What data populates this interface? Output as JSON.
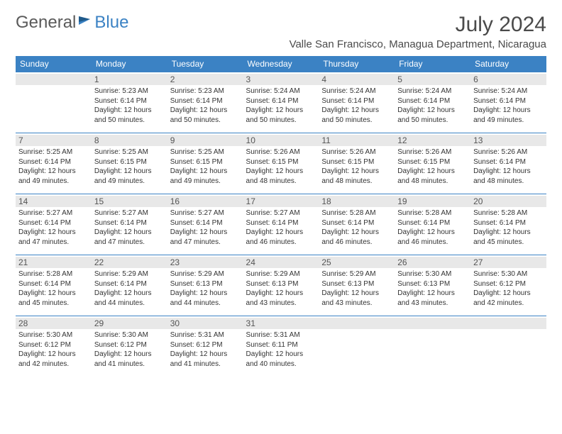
{
  "logo": {
    "text1": "General",
    "text2": "Blue"
  },
  "title": "July 2024",
  "location": "Valle San Francisco, Managua Department, Nicaragua",
  "colors": {
    "header_bg": "#3b82c4",
    "header_text": "#ffffff",
    "daynum_bg": "#e8e8e8",
    "border": "#3b82c4",
    "text": "#333333",
    "logo_gray": "#5a5a5a",
    "logo_blue": "#3b82c4"
  },
  "day_headers": [
    "Sunday",
    "Monday",
    "Tuesday",
    "Wednesday",
    "Thursday",
    "Friday",
    "Saturday"
  ],
  "weeks": [
    [
      {
        "n": "",
        "sr": "",
        "ss": "",
        "dl": ""
      },
      {
        "n": "1",
        "sr": "Sunrise: 5:23 AM",
        "ss": "Sunset: 6:14 PM",
        "dl": "Daylight: 12 hours and 50 minutes."
      },
      {
        "n": "2",
        "sr": "Sunrise: 5:23 AM",
        "ss": "Sunset: 6:14 PM",
        "dl": "Daylight: 12 hours and 50 minutes."
      },
      {
        "n": "3",
        "sr": "Sunrise: 5:24 AM",
        "ss": "Sunset: 6:14 PM",
        "dl": "Daylight: 12 hours and 50 minutes."
      },
      {
        "n": "4",
        "sr": "Sunrise: 5:24 AM",
        "ss": "Sunset: 6:14 PM",
        "dl": "Daylight: 12 hours and 50 minutes."
      },
      {
        "n": "5",
        "sr": "Sunrise: 5:24 AM",
        "ss": "Sunset: 6:14 PM",
        "dl": "Daylight: 12 hours and 50 minutes."
      },
      {
        "n": "6",
        "sr": "Sunrise: 5:24 AM",
        "ss": "Sunset: 6:14 PM",
        "dl": "Daylight: 12 hours and 49 minutes."
      }
    ],
    [
      {
        "n": "7",
        "sr": "Sunrise: 5:25 AM",
        "ss": "Sunset: 6:14 PM",
        "dl": "Daylight: 12 hours and 49 minutes."
      },
      {
        "n": "8",
        "sr": "Sunrise: 5:25 AM",
        "ss": "Sunset: 6:15 PM",
        "dl": "Daylight: 12 hours and 49 minutes."
      },
      {
        "n": "9",
        "sr": "Sunrise: 5:25 AM",
        "ss": "Sunset: 6:15 PM",
        "dl": "Daylight: 12 hours and 49 minutes."
      },
      {
        "n": "10",
        "sr": "Sunrise: 5:26 AM",
        "ss": "Sunset: 6:15 PM",
        "dl": "Daylight: 12 hours and 48 minutes."
      },
      {
        "n": "11",
        "sr": "Sunrise: 5:26 AM",
        "ss": "Sunset: 6:15 PM",
        "dl": "Daylight: 12 hours and 48 minutes."
      },
      {
        "n": "12",
        "sr": "Sunrise: 5:26 AM",
        "ss": "Sunset: 6:15 PM",
        "dl": "Daylight: 12 hours and 48 minutes."
      },
      {
        "n": "13",
        "sr": "Sunrise: 5:26 AM",
        "ss": "Sunset: 6:14 PM",
        "dl": "Daylight: 12 hours and 48 minutes."
      }
    ],
    [
      {
        "n": "14",
        "sr": "Sunrise: 5:27 AM",
        "ss": "Sunset: 6:14 PM",
        "dl": "Daylight: 12 hours and 47 minutes."
      },
      {
        "n": "15",
        "sr": "Sunrise: 5:27 AM",
        "ss": "Sunset: 6:14 PM",
        "dl": "Daylight: 12 hours and 47 minutes."
      },
      {
        "n": "16",
        "sr": "Sunrise: 5:27 AM",
        "ss": "Sunset: 6:14 PM",
        "dl": "Daylight: 12 hours and 47 minutes."
      },
      {
        "n": "17",
        "sr": "Sunrise: 5:27 AM",
        "ss": "Sunset: 6:14 PM",
        "dl": "Daylight: 12 hours and 46 minutes."
      },
      {
        "n": "18",
        "sr": "Sunrise: 5:28 AM",
        "ss": "Sunset: 6:14 PM",
        "dl": "Daylight: 12 hours and 46 minutes."
      },
      {
        "n": "19",
        "sr": "Sunrise: 5:28 AM",
        "ss": "Sunset: 6:14 PM",
        "dl": "Daylight: 12 hours and 46 minutes."
      },
      {
        "n": "20",
        "sr": "Sunrise: 5:28 AM",
        "ss": "Sunset: 6:14 PM",
        "dl": "Daylight: 12 hours and 45 minutes."
      }
    ],
    [
      {
        "n": "21",
        "sr": "Sunrise: 5:28 AM",
        "ss": "Sunset: 6:14 PM",
        "dl": "Daylight: 12 hours and 45 minutes."
      },
      {
        "n": "22",
        "sr": "Sunrise: 5:29 AM",
        "ss": "Sunset: 6:14 PM",
        "dl": "Daylight: 12 hours and 44 minutes."
      },
      {
        "n": "23",
        "sr": "Sunrise: 5:29 AM",
        "ss": "Sunset: 6:13 PM",
        "dl": "Daylight: 12 hours and 44 minutes."
      },
      {
        "n": "24",
        "sr": "Sunrise: 5:29 AM",
        "ss": "Sunset: 6:13 PM",
        "dl": "Daylight: 12 hours and 43 minutes."
      },
      {
        "n": "25",
        "sr": "Sunrise: 5:29 AM",
        "ss": "Sunset: 6:13 PM",
        "dl": "Daylight: 12 hours and 43 minutes."
      },
      {
        "n": "26",
        "sr": "Sunrise: 5:30 AM",
        "ss": "Sunset: 6:13 PM",
        "dl": "Daylight: 12 hours and 43 minutes."
      },
      {
        "n": "27",
        "sr": "Sunrise: 5:30 AM",
        "ss": "Sunset: 6:12 PM",
        "dl": "Daylight: 12 hours and 42 minutes."
      }
    ],
    [
      {
        "n": "28",
        "sr": "Sunrise: 5:30 AM",
        "ss": "Sunset: 6:12 PM",
        "dl": "Daylight: 12 hours and 42 minutes."
      },
      {
        "n": "29",
        "sr": "Sunrise: 5:30 AM",
        "ss": "Sunset: 6:12 PM",
        "dl": "Daylight: 12 hours and 41 minutes."
      },
      {
        "n": "30",
        "sr": "Sunrise: 5:31 AM",
        "ss": "Sunset: 6:12 PM",
        "dl": "Daylight: 12 hours and 41 minutes."
      },
      {
        "n": "31",
        "sr": "Sunrise: 5:31 AM",
        "ss": "Sunset: 6:11 PM",
        "dl": "Daylight: 12 hours and 40 minutes."
      },
      {
        "n": "",
        "sr": "",
        "ss": "",
        "dl": ""
      },
      {
        "n": "",
        "sr": "",
        "ss": "",
        "dl": ""
      },
      {
        "n": "",
        "sr": "",
        "ss": "",
        "dl": ""
      }
    ]
  ]
}
